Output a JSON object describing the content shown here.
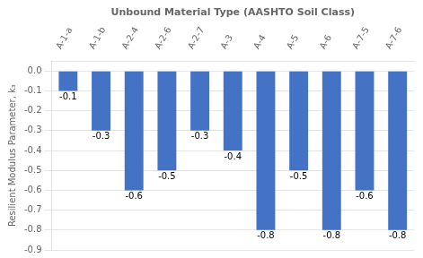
{
  "chart_data": {
    "type": "bar",
    "categories": [
      "A-1-a",
      "A-1-b",
      "A-2-4",
      "A-2-6",
      "A-2-7",
      "A-3",
      "A-4",
      "A-5",
      "A-6",
      "A-7-5",
      "A-7-6"
    ],
    "values": [
      -0.1,
      -0.3,
      -0.6,
      -0.5,
      -0.3,
      -0.4,
      -0.8,
      -0.5,
      -0.8,
      -0.6,
      -0.8
    ],
    "color": "#4472C4",
    "xlabel": "Unbound Material Type (AASHTO Soil Class)",
    "ylabel": "Resilient Modulus Parameter, k₃",
    "ylim": [
      -0.9,
      0.05
    ],
    "yticks": [
      {
        "value": 0.0,
        "label": "0.0"
      },
      -0.1,
      -0.2,
      -0.3,
      -0.4,
      -0.5,
      -0.6,
      -0.7,
      -0.8,
      -0.9
    ],
    "grid": true,
    "data_labels": true
  }
}
